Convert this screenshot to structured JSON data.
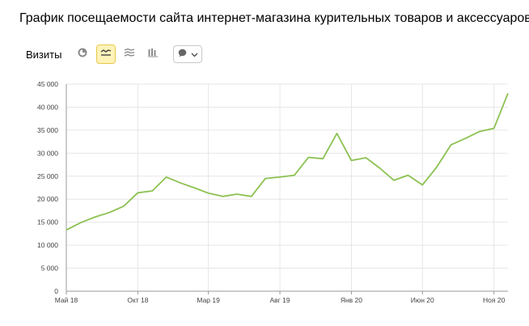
{
  "header": {
    "title": "График посещаемости сайта интернет-магазина курительных товаров и аксессуаров"
  },
  "toolbar": {
    "metric_label": "Визиты",
    "buttons": [
      {
        "icon": "pie-chart-icon",
        "active": false
      },
      {
        "icon": "line-chart-icon",
        "active": true
      },
      {
        "icon": "area-chart-icon",
        "active": false
      },
      {
        "icon": "bar-chart-icon",
        "active": false
      }
    ],
    "annotation_select_icon": "speech-bubble-icon"
  },
  "colors": {
    "line": "#8cc152",
    "grid": "#e6e6e6",
    "axis": "#9a9a9a",
    "active_button_bg": "#fff3b8",
    "active_button_border": "#e8c84a"
  },
  "chart_data": {
    "type": "line",
    "title": "",
    "xlabel": "",
    "ylabel": "",
    "ylim": [
      0,
      45000
    ],
    "yticks": [
      0,
      5000,
      10000,
      15000,
      20000,
      25000,
      30000,
      35000,
      40000,
      45000
    ],
    "ytick_labels": [
      "0",
      "5 000",
      "10 000",
      "15 000",
      "20 000",
      "25 000",
      "30 000",
      "35 000",
      "40 000",
      "45 000"
    ],
    "xtick_labels": [
      "Май 18",
      "Окт 18",
      "Мар 19",
      "Авг 19",
      "Янв 20",
      "Июн 20",
      "Ноя 20"
    ],
    "xtick_positions": [
      "2018-05",
      "2018-10",
      "2019-03",
      "2019-08",
      "2020-01",
      "2020-06",
      "2020-11"
    ],
    "grid": true,
    "series": [
      {
        "x": [
          "2018-05",
          "2018-06",
          "2018-07",
          "2018-08",
          "2018-09",
          "2018-10",
          "2018-11",
          "2018-12",
          "2019-01",
          "2019-02",
          "2019-03",
          "2019-04",
          "2019-05",
          "2019-06",
          "2019-07",
          "2019-08",
          "2019-09",
          "2019-10",
          "2019-11",
          "2019-12",
          "2020-01",
          "2020-02",
          "2020-03",
          "2020-04",
          "2020-05",
          "2020-06",
          "2020-07",
          "2020-08",
          "2020-09",
          "2020-10",
          "2020-11",
          "2020-12"
        ],
        "values": [
          13300,
          14900,
          16100,
          17100,
          18500,
          21400,
          21800,
          24800,
          23500,
          22400,
          21300,
          20600,
          21100,
          20600,
          24500,
          24800,
          25200,
          29100,
          28800,
          34300,
          28400,
          29000,
          26800,
          24100,
          25200,
          23100,
          26900,
          31800,
          33200,
          34700,
          35400,
          43000
        ]
      }
    ]
  }
}
